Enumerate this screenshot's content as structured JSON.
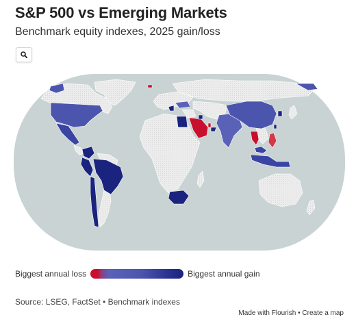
{
  "header": {
    "title": "S&P 500 vs Emerging Markets",
    "subtitle": "Benchmark equity indexes, 2025 gain/loss"
  },
  "controls": {
    "search_icon": "search-icon"
  },
  "legend": {
    "min_label": "Biggest annual loss",
    "max_label": "Biggest annual gain",
    "colors": {
      "loss": "#c8102e",
      "mid": "#4f58b0",
      "gain": "#1a237e"
    }
  },
  "map": {
    "projection": "equal-earth",
    "ocean_color": "#c9d3d3",
    "no_data_color": "#eaeaea",
    "regions": [
      {
        "name": "United States",
        "status": "gain",
        "color": "#4c55ae"
      },
      {
        "name": "Canada",
        "status": "no data",
        "color": "#eaeaea"
      },
      {
        "name": "Mexico",
        "status": "gain",
        "color": "#3a44a3"
      },
      {
        "name": "Peru",
        "status": "gain",
        "color": "#1a237e"
      },
      {
        "name": "Colombia",
        "status": "gain",
        "color": "#1a237e"
      },
      {
        "name": "Brazil",
        "status": "gain",
        "color": "#1a237e"
      },
      {
        "name": "Chile",
        "status": "gain",
        "color": "#1a237e"
      },
      {
        "name": "Greece",
        "status": "gain",
        "color": "#1a237e"
      },
      {
        "name": "Turkey",
        "status": "gain",
        "color": "#5a62b8"
      },
      {
        "name": "Egypt",
        "status": "gain",
        "color": "#1a237e"
      },
      {
        "name": "Saudi Arabia",
        "status": "loss",
        "color": "#c8102e"
      },
      {
        "name": "United Arab Emirates",
        "status": "gain",
        "color": "#1a237e"
      },
      {
        "name": "India",
        "status": "gain",
        "color": "#5a62b8"
      },
      {
        "name": "China",
        "status": "gain",
        "color": "#4c55ae"
      },
      {
        "name": "South Korea",
        "status": "gain",
        "color": "#1a237e"
      },
      {
        "name": "Taiwan",
        "status": "gain",
        "color": "#1a237e"
      },
      {
        "name": "Thailand",
        "status": "loss",
        "color": "#c8102e"
      },
      {
        "name": "Philippines",
        "status": "loss",
        "color": "#d03a48"
      },
      {
        "name": "Malaysia",
        "status": "gain",
        "color": "#3a44a3"
      },
      {
        "name": "Indonesia",
        "status": "gain",
        "color": "#3a44a3"
      },
      {
        "name": "South Africa",
        "status": "gain",
        "color": "#1a237e"
      },
      {
        "name": "Qatar",
        "status": "loss",
        "color": "#c8102e"
      },
      {
        "name": "Kuwait",
        "status": "gain",
        "color": "#1a237e"
      }
    ]
  },
  "footer": {
    "source": "Source: LSEG, FactSet • Benchmark indexes",
    "credit": "Made with Flourish • Create a map"
  }
}
